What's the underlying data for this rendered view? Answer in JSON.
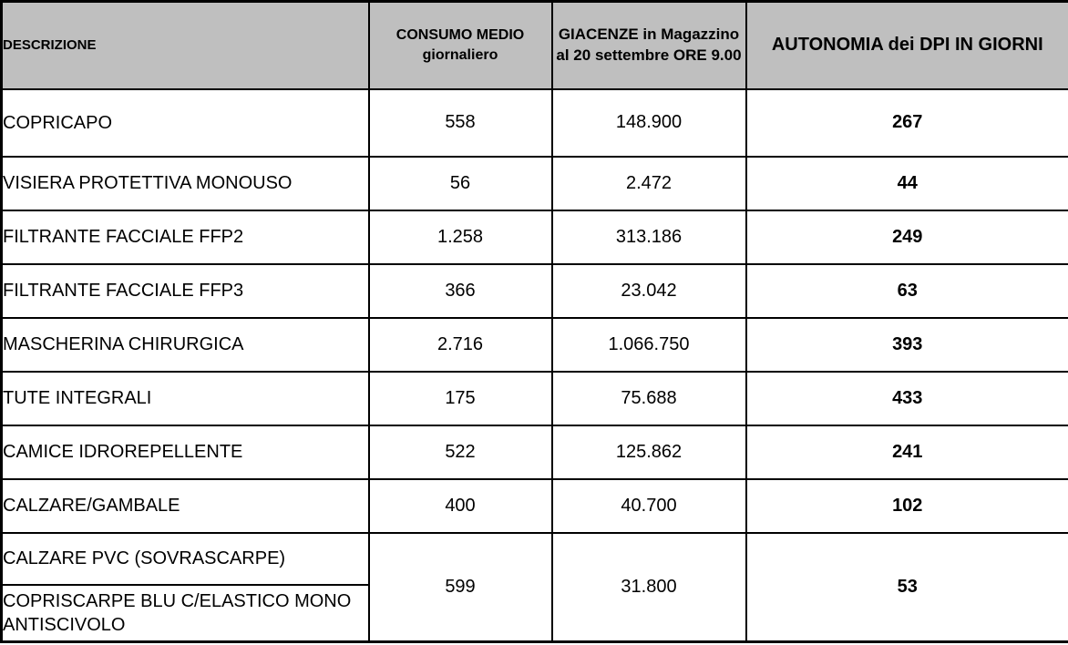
{
  "colors": {
    "header_bg": "#bfbfbf",
    "border": "#000000",
    "text": "#000000",
    "body_bg": "#ffffff"
  },
  "table": {
    "headers": {
      "descrizione": "DESCRIZIONE",
      "consumo": "CONSUMO MEDIO giornaliero",
      "giacenze": "GIACENZE in Magazzino al 20 settembre ORE 9.00",
      "autonomia": "AUTONOMIA dei DPI IN GIORNI"
    },
    "rows": [
      {
        "descrizione": "COPRICAPO",
        "consumo": "558",
        "giacenze": "148.900",
        "autonomia": "267"
      },
      {
        "descrizione": "VISIERA PROTETTIVA MONOUSO",
        "consumo": "56",
        "giacenze": "2.472",
        "autonomia": "44"
      },
      {
        "descrizione": "FILTRANTE FACCIALE FFP2",
        "consumo": "1.258",
        "giacenze": "313.186",
        "autonomia": "249"
      },
      {
        "descrizione": "FILTRANTE FACCIALE FFP3",
        "consumo": "366",
        "giacenze": "23.042",
        "autonomia": "63"
      },
      {
        "descrizione": "MASCHERINA CHIRURGICA",
        "consumo": "2.716",
        "giacenze": "1.066.750",
        "autonomia": "393"
      },
      {
        "descrizione": "TUTE INTEGRALI",
        "consumo": "175",
        "giacenze": "75.688",
        "autonomia": "433"
      },
      {
        "descrizione": "CAMICE IDROREPELLENTE",
        "consumo": "522",
        "giacenze": "125.862",
        "autonomia": "241"
      },
      {
        "descrizione": "CALZARE/GAMBALE",
        "consumo": "400",
        "giacenze": "40.700",
        "autonomia": "102"
      }
    ],
    "merged_group": {
      "descriptions": [
        "CALZARE PVC (SOVRASCARPE)",
        "COPRISCARPE BLU C/ELASTICO MONO ANTISCIVOLO"
      ],
      "consumo": "599",
      "giacenze": "31.800",
      "autonomia": "53"
    }
  }
}
